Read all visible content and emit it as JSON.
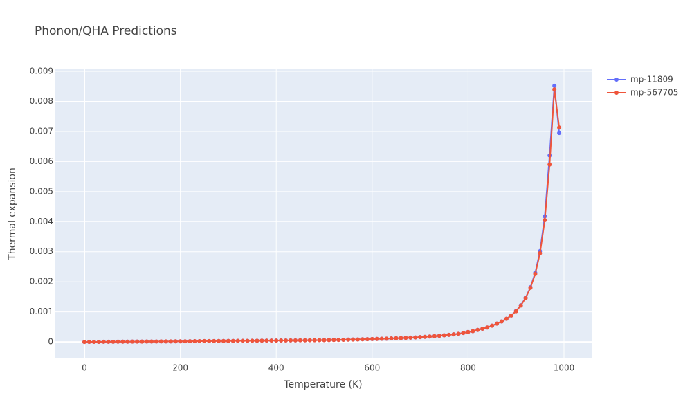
{
  "chart_data": {
    "type": "line",
    "title": "Phonon/QHA Predictions",
    "x_label": "Temperature (K)",
    "y_label": "Thermal expansion",
    "x": [
      0,
      10,
      20,
      30,
      40,
      50,
      60,
      70,
      80,
      90,
      100,
      110,
      120,
      130,
      140,
      150,
      160,
      170,
      180,
      190,
      200,
      210,
      220,
      230,
      240,
      250,
      260,
      270,
      280,
      290,
      300,
      310,
      320,
      330,
      340,
      350,
      360,
      370,
      380,
      390,
      400,
      410,
      420,
      430,
      440,
      450,
      460,
      470,
      480,
      490,
      500,
      510,
      520,
      530,
      540,
      550,
      560,
      570,
      580,
      590,
      600,
      610,
      620,
      630,
      640,
      650,
      660,
      670,
      680,
      690,
      700,
      710,
      720,
      730,
      740,
      750,
      760,
      770,
      780,
      790,
      800,
      810,
      820,
      830,
      840,
      850,
      860,
      870,
      880,
      890,
      900,
      910,
      920,
      930,
      940,
      950,
      960,
      970,
      980,
      990
    ],
    "series": [
      {
        "name": "mp-11809",
        "color": "#636efa",
        "values": [
          0,
          1e-06,
          2e-06,
          3e-06,
          4e-06,
          5e-06,
          6e-06,
          7e-06,
          8e-06,
          9e-06,
          1e-05,
          1.1e-05,
          1.2e-05,
          1.3e-05,
          1.4e-05,
          1.5e-05,
          1.6e-05,
          1.7e-05,
          1.8e-05,
          1.9e-05,
          2e-05,
          2.1e-05,
          2.3e-05,
          2.4e-05,
          2.5e-05,
          2.7e-05,
          2.8e-05,
          2.9e-05,
          3e-05,
          3.2e-05,
          3.3e-05,
          3.4e-05,
          3.6e-05,
          3.7e-05,
          3.8e-05,
          4e-05,
          4.1e-05,
          4.2e-05,
          4.4e-05,
          4.5e-05,
          4.6e-05,
          4.8e-05,
          4.9e-05,
          5.1e-05,
          5.2e-05,
          5.3e-05,
          5.5e-05,
          5.6e-05,
          5.8e-05,
          5.9e-05,
          6e-05,
          6.3e-05,
          6.6e-05,
          6.9e-05,
          7.2e-05,
          7.6e-05,
          8e-05,
          8.4e-05,
          8.8e-05,
          9.2e-05,
          9.6e-05,
          0.0001,
          0.000105,
          0.00011,
          0.000116,
          0.000122,
          0.000128,
          0.000135,
          0.000142,
          0.00015,
          0.00016,
          0.00017,
          0.00018,
          0.000192,
          0.000205,
          0.00022,
          0.000235,
          0.000252,
          0.00027,
          0.0003,
          0.00033,
          0.00036,
          0.0004,
          0.00044,
          0.00048,
          0.00054,
          0.00061,
          0.00068,
          0.00077,
          0.00088,
          0.00103,
          0.00122,
          0.00147,
          0.00182,
          0.0023,
          0.00302,
          0.00418,
          0.0062,
          0.00852,
          0.00695
        ]
      },
      {
        "name": "mp-567705",
        "color": "#EF553B",
        "values": [
          0,
          1e-06,
          2e-06,
          3e-06,
          4e-06,
          5e-06,
          6e-06,
          7e-06,
          8e-06,
          9e-06,
          1e-05,
          1.1e-05,
          1.2e-05,
          1.3e-05,
          1.4e-05,
          1.5e-05,
          1.6e-05,
          1.7e-05,
          1.8e-05,
          1.9e-05,
          2e-05,
          2.1e-05,
          2.3e-05,
          2.4e-05,
          2.5e-05,
          2.7e-05,
          2.8e-05,
          2.9e-05,
          3e-05,
          3.2e-05,
          3.3e-05,
          3.4e-05,
          3.6e-05,
          3.7e-05,
          3.8e-05,
          4e-05,
          4.1e-05,
          4.2e-05,
          4.4e-05,
          4.5e-05,
          4.6e-05,
          4.8e-05,
          4.9e-05,
          5.1e-05,
          5.2e-05,
          5.3e-05,
          5.5e-05,
          5.6e-05,
          5.8e-05,
          5.9e-05,
          6e-05,
          6.3e-05,
          6.6e-05,
          6.9e-05,
          7.2e-05,
          7.6e-05,
          8e-05,
          8.4e-05,
          8.8e-05,
          9.2e-05,
          9.6e-05,
          0.0001,
          0.000105,
          0.00011,
          0.000116,
          0.000122,
          0.000128,
          0.000135,
          0.000142,
          0.00015,
          0.00016,
          0.00017,
          0.00018,
          0.000192,
          0.000205,
          0.00022,
          0.000235,
          0.000252,
          0.00027,
          0.0003,
          0.00033,
          0.00036,
          0.0004,
          0.00044,
          0.00048,
          0.00054,
          0.00061,
          0.00068,
          0.00077,
          0.00088,
          0.00102,
          0.00121,
          0.00146,
          0.0018,
          0.00226,
          0.00295,
          0.00405,
          0.0059,
          0.0084,
          0.00713
        ]
      }
    ],
    "xlim": [
      -60.6,
      1057.7
    ],
    "xticks": [
      0,
      200,
      400,
      600,
      800,
      1000
    ],
    "ylim": [
      -0.00055,
      0.00907
    ],
    "yticks": [
      0,
      0.001,
      0.002,
      0.003,
      0.004,
      0.005,
      0.006,
      0.007,
      0.008,
      0.009
    ],
    "grid": true,
    "legend": "outside-right"
  }
}
